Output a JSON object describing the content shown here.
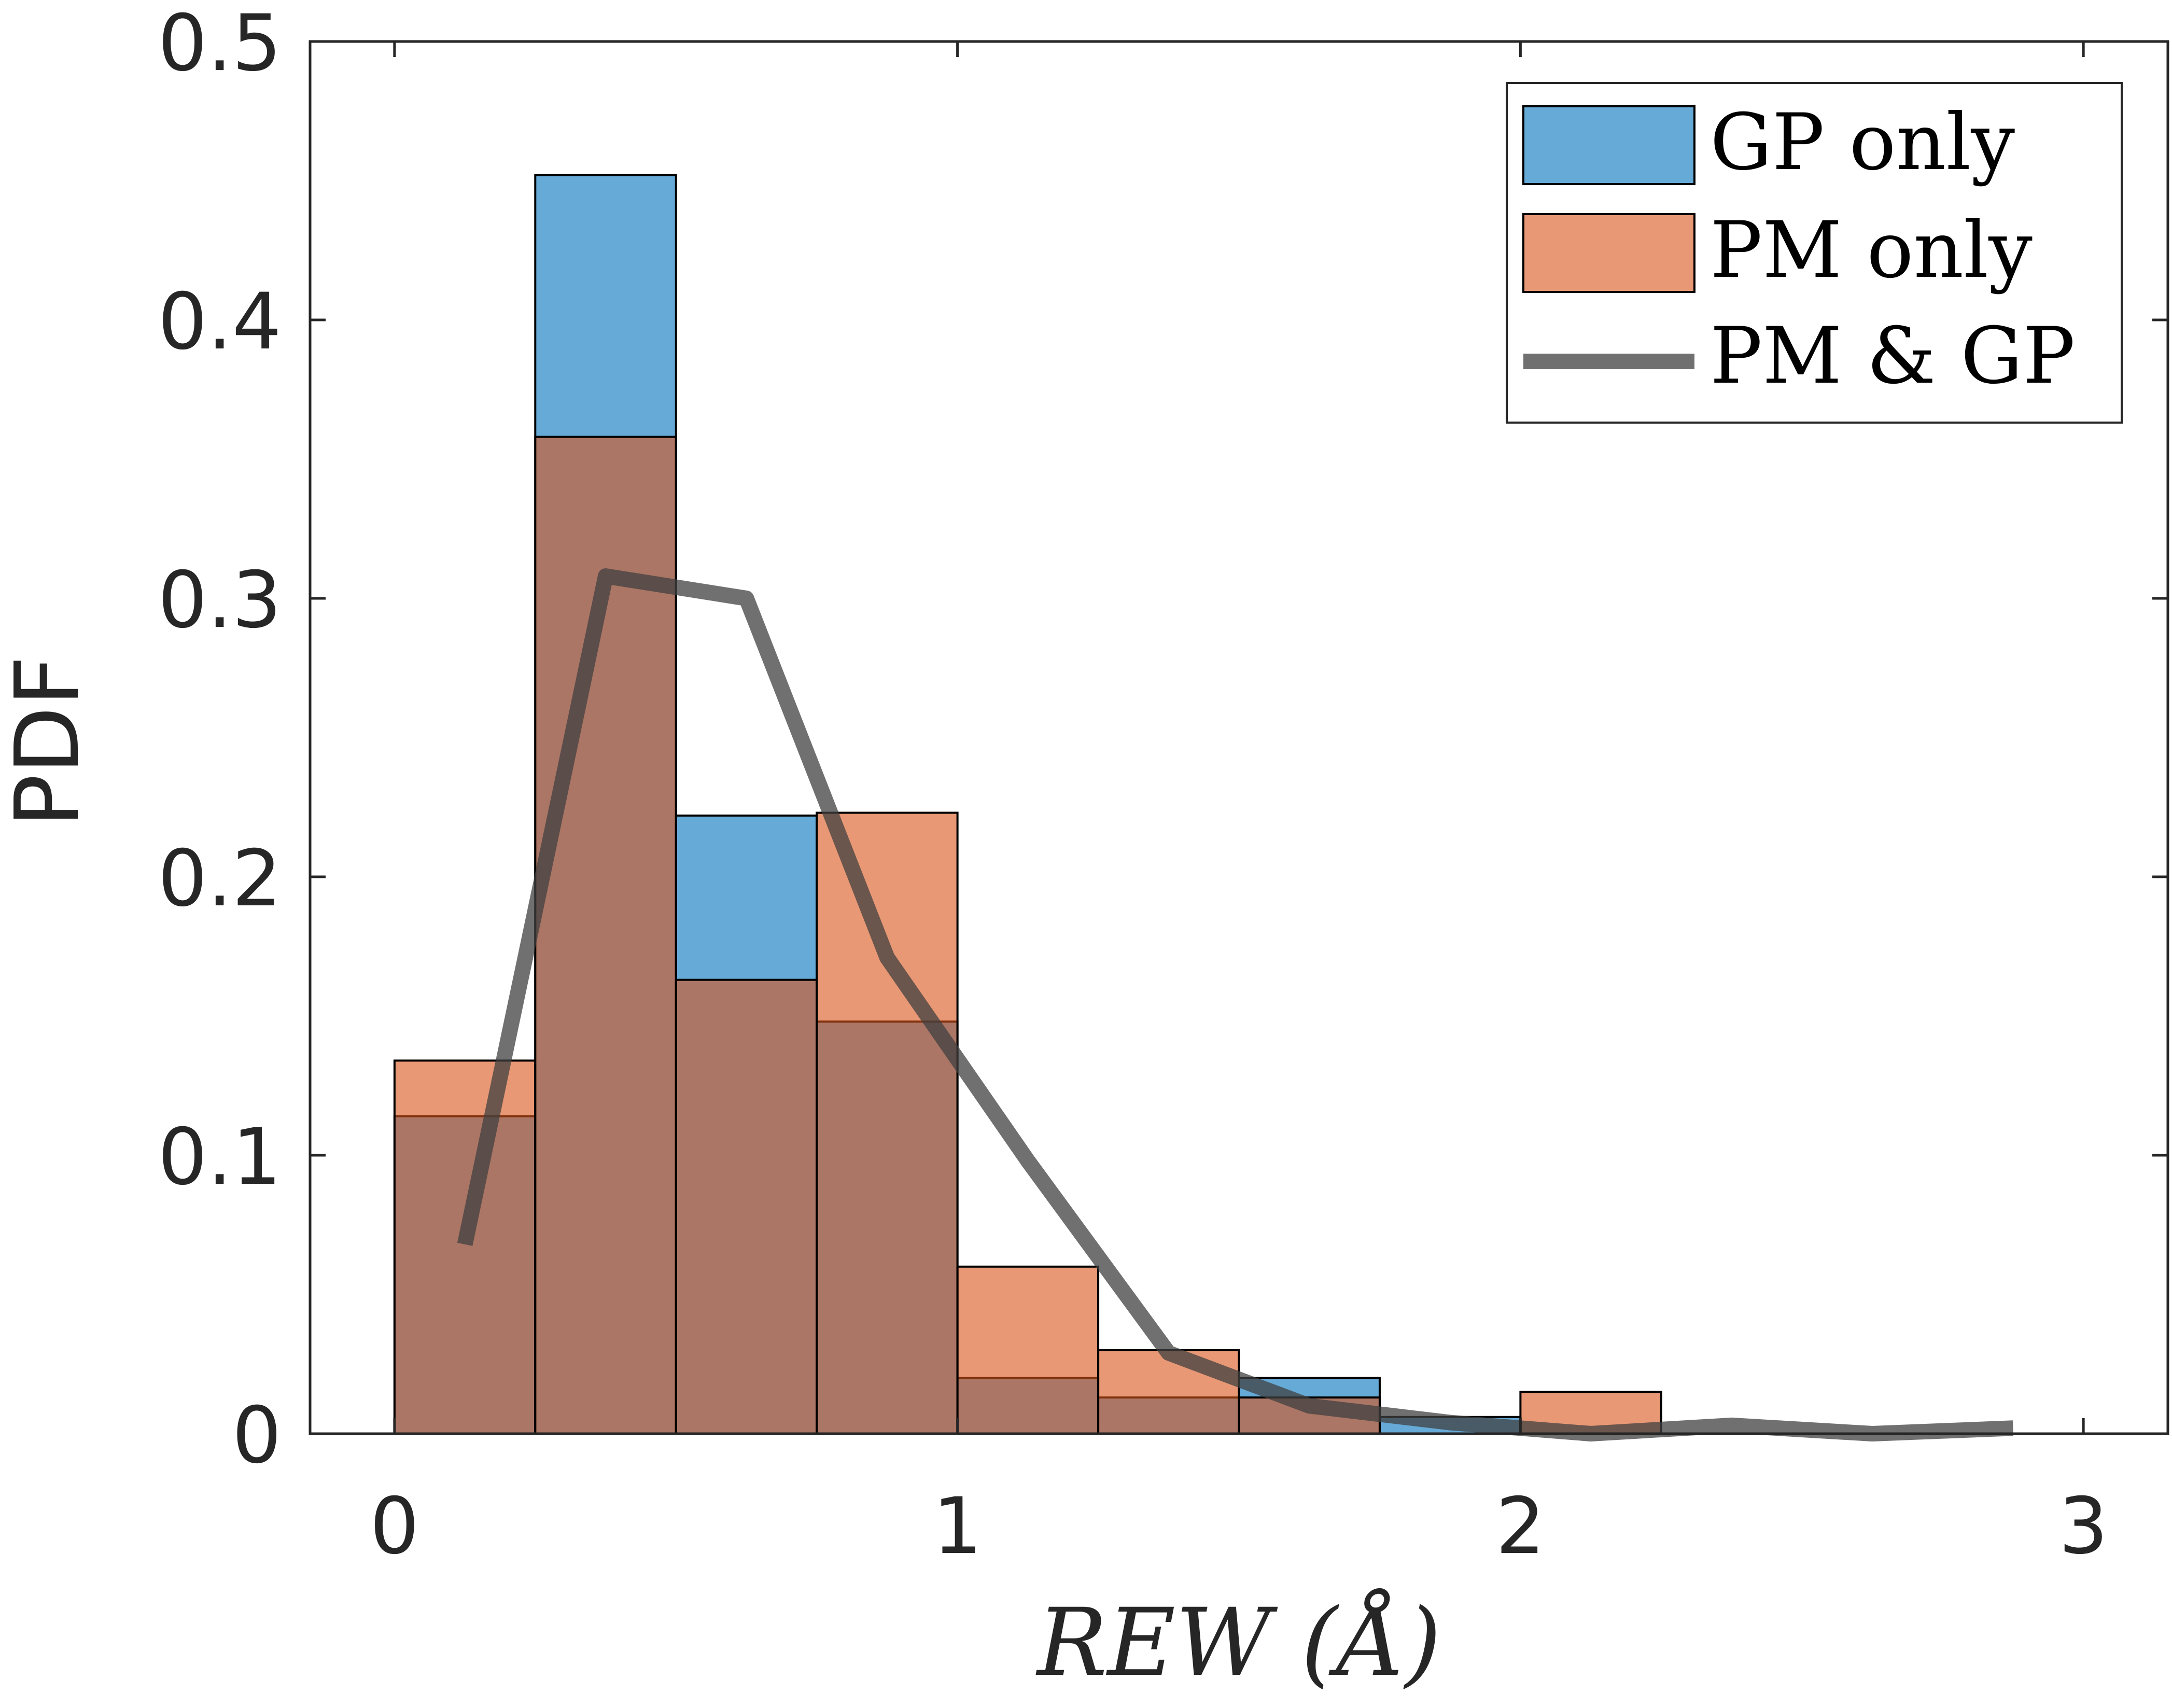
{
  "chart_data": {
    "type": "bar",
    "xlabel": "REW (Å)",
    "ylabel": "PDF",
    "xlim": [
      -0.15,
      3.15
    ],
    "ylim": [
      0,
      0.5
    ],
    "xticks": [
      0,
      1,
      2,
      3
    ],
    "yticks": [
      0,
      0.1,
      0.2,
      0.3,
      0.4,
      0.5
    ],
    "xtick_labels": [
      "0",
      "1",
      "2",
      "3"
    ],
    "ytick_labels": [
      "0",
      "0.1",
      "0.2",
      "0.3",
      "0.4",
      "0.5"
    ],
    "bin_edges": [
      0,
      0.25,
      0.5,
      0.75,
      1.0,
      1.25,
      1.5,
      1.75,
      2.0,
      2.25
    ],
    "series": [
      {
        "name": "GP only",
        "kind": "histogram",
        "color": "#0072BD",
        "values": [
          0.114,
          0.452,
          0.222,
          0.148,
          0.02,
          0.013,
          0.02,
          0.006,
          0.0
        ]
      },
      {
        "name": "PM only",
        "kind": "histogram",
        "color": "#D95319",
        "values": [
          0.134,
          0.358,
          0.163,
          0.223,
          0.06,
          0.03,
          0.013,
          0.0,
          0.015
        ]
      },
      {
        "name": "PM & GP",
        "kind": "line",
        "color": "#404040",
        "x": [
          0.125,
          0.375,
          0.625,
          0.875,
          1.125,
          1.375,
          1.625,
          1.875,
          2.125,
          2.375,
          2.625,
          2.875
        ],
        "values": [
          0.068,
          0.308,
          0.3,
          0.171,
          0.098,
          0.029,
          0.01,
          0.004,
          0.0,
          0.003,
          0.0,
          0.002
        ]
      }
    ],
    "legend": {
      "placement": "top-right"
    },
    "grid": false
  }
}
